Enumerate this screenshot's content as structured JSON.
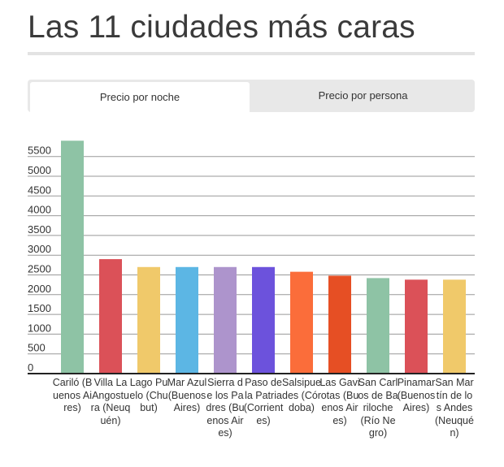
{
  "title": "Las 11 ciudades más caras",
  "tabs": [
    {
      "label": "Precio por noche",
      "active": true
    },
    {
      "label": "Precio por persona",
      "active": false
    }
  ],
  "chart_data": {
    "type": "bar",
    "title": "",
    "xlabel": "",
    "ylabel": "",
    "ylim": [
      0,
      5750
    ],
    "yticks": [
      0,
      500,
      1000,
      1500,
      2000,
      2500,
      3000,
      3500,
      4000,
      4500,
      5000,
      5500
    ],
    "grid": true,
    "categories": [
      "Cariló (Buenos Aires)",
      "Villa La Angostura (Neuquén)",
      "Lago Puelo (Chubut)",
      "Mar Azul (Buenos Aires)",
      "Sierra de los Padres (Buenos Aires)",
      "Paso de la Patria (Corrientes)",
      "Salsipuedes (Córdoba)",
      "Las Gaviotas (Buenos Aires)",
      "San Carlos de Bariloche (Río Negro)",
      "Pinamar (Buenos Aires)",
      "San Martín de los Andes (Neuquén)"
    ],
    "values": [
      5900,
      2900,
      2700,
      2700,
      2700,
      2700,
      2580,
      2480,
      2420,
      2380,
      2380
    ],
    "colors": [
      "#8ec3a5",
      "#db5158",
      "#f0c96a",
      "#5cb6e4",
      "#ad94cc",
      "#6c52dc",
      "#fb6d3a",
      "#e64f24",
      "#8ec3a5",
      "#db5158",
      "#f0c96a"
    ]
  }
}
